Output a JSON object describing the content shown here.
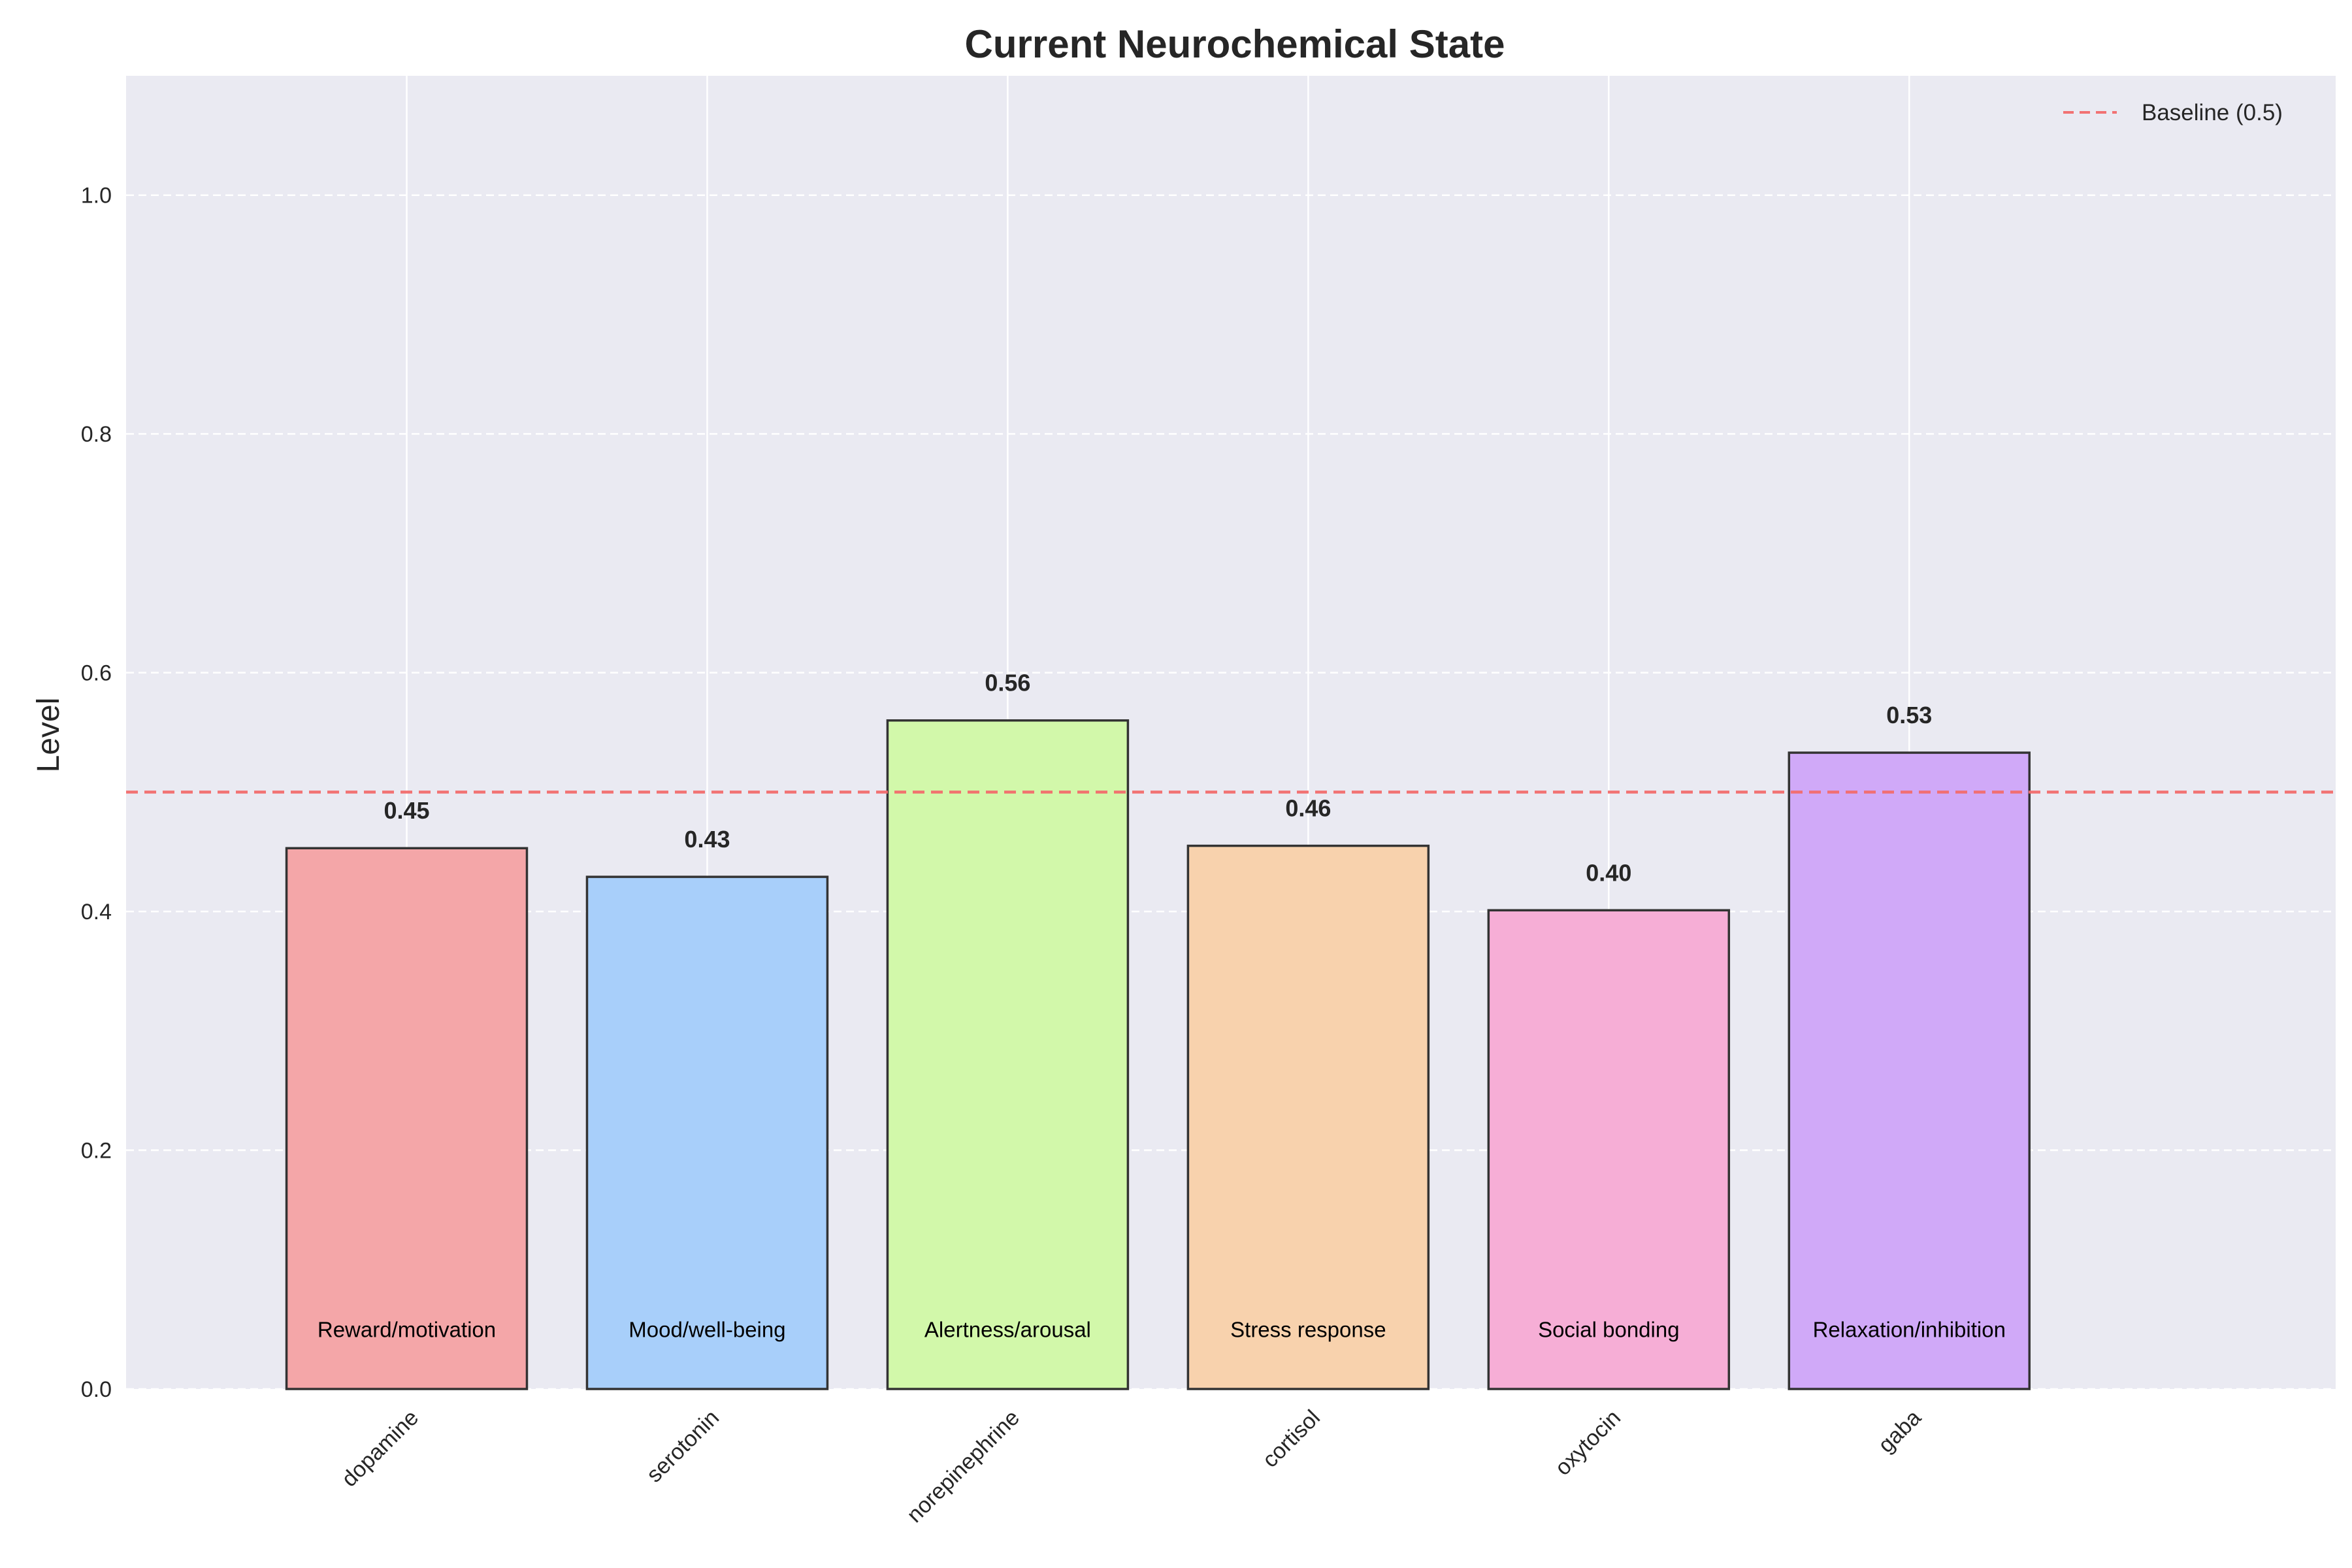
{
  "chart_data": {
    "type": "bar",
    "title": "Current Neurochemical State",
    "xlabel": "",
    "ylabel": "Level",
    "ylim": [
      0,
      1.1
    ],
    "yticks": [
      "0.0",
      "0.2",
      "0.4",
      "0.6",
      "0.8",
      "1.0"
    ],
    "categories": [
      "dopamine",
      "serotonin",
      "norepinephrine",
      "cortisol",
      "oxytocin",
      "gaba"
    ],
    "values": [
      0.453,
      0.429,
      0.56,
      0.455,
      0.401,
      0.533
    ],
    "value_labels": [
      "0.45",
      "0.43",
      "0.56",
      "0.46",
      "0.40",
      "0.53"
    ],
    "descriptions": [
      "Reward/motivation",
      "Mood/well-being",
      "Alertness/arousal",
      "Stress response",
      "Social bonding",
      "Relaxation/inhibition"
    ],
    "colors": [
      "#f4a6a8",
      "#a8cffa",
      "#d2f8aa",
      "#f8d2ad",
      "#f6aed6",
      "#d0a9f8"
    ],
    "baseline": {
      "value": 0.5,
      "label": "Baseline (0.5)",
      "color": "#f26b6b"
    },
    "legend_position": "top-right",
    "grid": true,
    "background": "#eaeaf2"
  }
}
